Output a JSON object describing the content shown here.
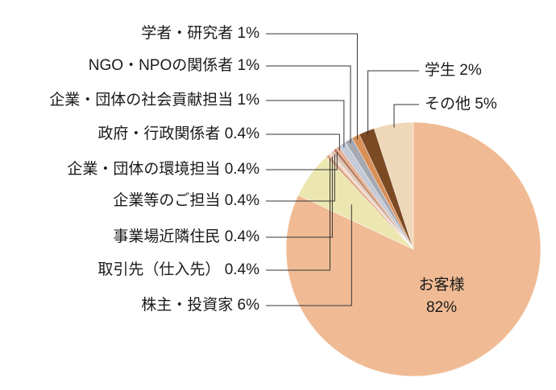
{
  "chart_data": {
    "type": "pie",
    "categories": [
      "その他",
      "学生",
      "学者・研究者",
      "NGO・NPOの関係者",
      "企業・団体の社会貢献担当",
      "政府・行政関係者",
      "企業・団体の環境担当",
      "企業等のご担当",
      "事業場近隣住民",
      "取引先（仕入先）",
      "株主・投資家",
      "お客様"
    ],
    "values": [
      5,
      2,
      1,
      1,
      1,
      0.4,
      0.4,
      0.4,
      0.4,
      0.4,
      6,
      82
    ],
    "value_labels": [
      "5%",
      "2%",
      "1%",
      "1%",
      "1%",
      "0.4%",
      "0.4%",
      "0.4%",
      "0.4%",
      "0.4%",
      "6%",
      "82%"
    ],
    "colors": [
      "#efd8b9",
      "#7b4a22",
      "#d98f58",
      "#a7a9b2",
      "#c4cad8",
      "#e6ad8d",
      "#b97b5c",
      "#d9c2b2",
      "#f3dacb",
      "#dea585",
      "#ece6b1",
      "#f0bb94"
    ]
  }
}
